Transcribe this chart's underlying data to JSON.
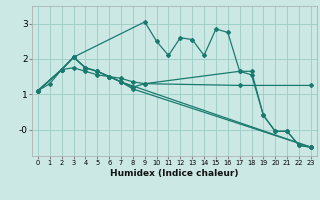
{
  "xlabel": "Humidex (Indice chaleur)",
  "bg_color": "#cce8e4",
  "grid_color": "#99ccc4",
  "line_color": "#1a7a6e",
  "xlim": [
    -0.5,
    23.5
  ],
  "ylim": [
    -0.75,
    3.5
  ],
  "xticks": [
    0,
    1,
    2,
    3,
    4,
    5,
    6,
    7,
    8,
    9,
    10,
    11,
    12,
    13,
    14,
    15,
    16,
    17,
    18,
    19,
    20,
    21,
    22,
    23
  ],
  "yticks": [
    0,
    1,
    2,
    3
  ],
  "ytick_labels": [
    "-0",
    "1",
    "2",
    "3"
  ],
  "lines": [
    {
      "x": [
        0,
        2,
        3,
        9,
        10,
        11,
        12,
        13,
        14,
        15,
        16,
        17,
        18,
        19,
        20,
        21,
        22,
        23
      ],
      "y": [
        1.1,
        1.7,
        2.05,
        3.05,
        2.5,
        2.1,
        2.6,
        2.55,
        2.1,
        2.85,
        2.75,
        1.65,
        1.65,
        0.4,
        -0.05,
        -0.05,
        -0.45,
        -0.5
      ]
    },
    {
      "x": [
        0,
        1,
        2,
        3,
        4,
        5,
        6,
        7,
        8,
        9,
        17,
        23
      ],
      "y": [
        1.1,
        1.3,
        1.7,
        1.75,
        1.65,
        1.55,
        1.5,
        1.45,
        1.35,
        1.3,
        1.25,
        1.25
      ]
    },
    {
      "x": [
        0,
        2,
        3,
        4,
        5,
        6,
        7,
        8,
        9,
        17,
        18,
        19,
        20,
        21,
        22,
        23
      ],
      "y": [
        1.1,
        1.7,
        2.05,
        1.75,
        1.65,
        1.5,
        1.35,
        1.2,
        1.3,
        1.65,
        1.55,
        0.4,
        -0.05,
        -0.05,
        -0.45,
        -0.5
      ]
    },
    {
      "x": [
        0,
        2,
        3,
        4,
        5,
        6,
        7,
        8,
        23
      ],
      "y": [
        1.1,
        1.7,
        2.05,
        1.75,
        1.65,
        1.5,
        1.35,
        1.15,
        -0.5
      ]
    },
    {
      "x": [
        0,
        2,
        3,
        4,
        5,
        6,
        7,
        23
      ],
      "y": [
        1.1,
        1.7,
        2.05,
        1.75,
        1.65,
        1.5,
        1.35,
        -0.5
      ]
    }
  ]
}
